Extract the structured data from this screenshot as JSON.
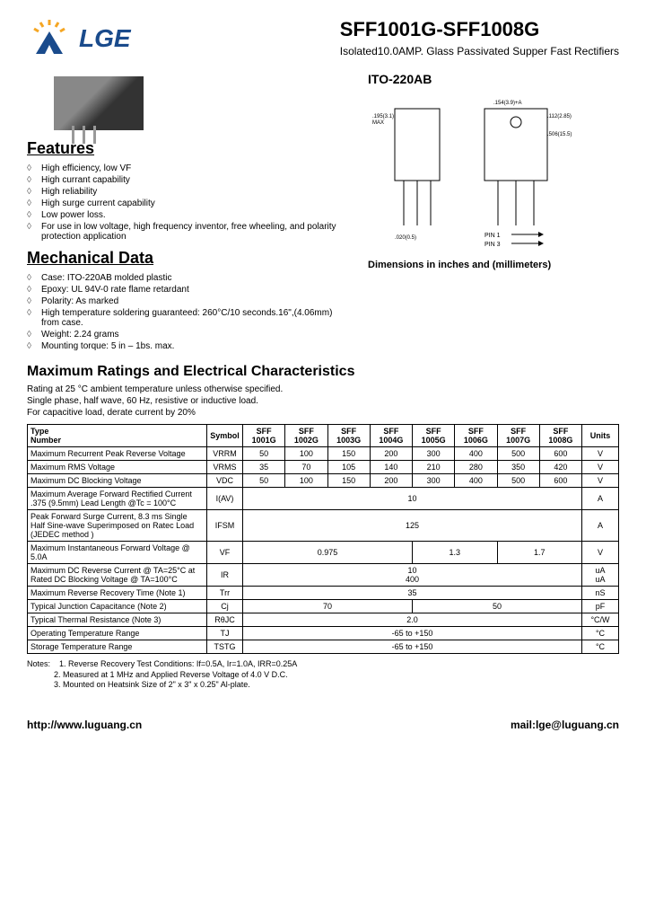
{
  "header": {
    "brand": "LGE",
    "part_number": "SFF1001G-SFF1008G",
    "subtitle": "Isolated10.0AMP. Glass Passivated Supper Fast Rectifiers"
  },
  "package": {
    "label": "ITO-220AB",
    "caption": "Dimensions in inches and (millimeters)"
  },
  "features": {
    "title": "Features",
    "items": [
      "High efficiency, low VF",
      "High currant capability",
      "High reliability",
      "High surge current capability",
      "Low power loss.",
      "For use in low voltage, high frequency inventor, free wheeling, and polarity protection application"
    ]
  },
  "mechanical": {
    "title": "Mechanical Data",
    "items": [
      "Case: ITO-220AB molded plastic",
      "Epoxy: UL 94V-0 rate flame retardant",
      "Polarity: As marked",
      "High temperature soldering guaranteed: 260°C/10 seconds.16\",(4.06mm) from case.",
      "Weight: 2.24 grams",
      "Mounting torque: 5 in – 1bs. max."
    ]
  },
  "ratings": {
    "title": "Maximum Ratings and Electrical Characteristics",
    "sub": "Rating at 25 °C ambient temperature unless otherwise specified.\nSingle phase, half wave, 60 Hz, resistive or inductive load.\nFor capacitive load, derate current by 20%",
    "headers": [
      "Type Number",
      "Symbol",
      "SFF 1001G",
      "SFF 1002G",
      "SFF 1003G",
      "SFF 1004G",
      "SFF 1005G",
      "SFF 1006G",
      "SFF 1007G",
      "SFF 1008G",
      "Units"
    ],
    "rows": [
      {
        "param": "Maximum Recurrent Peak Reverse Voltage",
        "sym": "VRRM",
        "vals": [
          "50",
          "100",
          "150",
          "200",
          "300",
          "400",
          "500",
          "600"
        ],
        "unit": "V"
      },
      {
        "param": "Maximum RMS Voltage",
        "sym": "VRMS",
        "vals": [
          "35",
          "70",
          "105",
          "140",
          "210",
          "280",
          "350",
          "420"
        ],
        "unit": "V"
      },
      {
        "param": "Maximum DC Blocking Voltage",
        "sym": "VDC",
        "vals": [
          "50",
          "100",
          "150",
          "200",
          "300",
          "400",
          "500",
          "600"
        ],
        "unit": "V"
      },
      {
        "param": "Maximum Average Forward Rectified Current .375 (9.5mm) Lead Length @Tc = 100°C",
        "sym": "I(AV)",
        "span": "10",
        "unit": "A"
      },
      {
        "param": "Peak Forward Surge Current, 8.3 ms Single Half Sine-wave Superimposed on Ratec Load (JEDEC method )",
        "sym": "IFSM",
        "span": "125",
        "unit": "A"
      },
      {
        "param": "Maximum Instantaneous Forward Voltage @ 5.0A",
        "sym": "VF",
        "groups": [
          {
            "span": 4,
            "val": "0.975"
          },
          {
            "span": 2,
            "val": "1.3"
          },
          {
            "span": 2,
            "val": "1.7"
          }
        ],
        "unit": "V"
      },
      {
        "param": "Maximum DC Reverse Current @ TA=25°C at Rated DC Blocking Voltage @ TA=100°C",
        "sym": "IR",
        "span": "10\n400",
        "unit": "uA\nuA"
      },
      {
        "param": "Maximum Reverse Recovery Time (Note 1)",
        "sym": "Trr",
        "span": "35",
        "unit": "nS"
      },
      {
        "param": "Typical Junction Capacitance (Note 2)",
        "sym": "Cj",
        "groups": [
          {
            "span": 4,
            "val": "70"
          },
          {
            "span": 4,
            "val": "50"
          }
        ],
        "unit": "pF"
      },
      {
        "param": "Typical Thermal Resistance (Note 3)",
        "sym": "RθJC",
        "span": "2.0",
        "unit": "°C/W"
      },
      {
        "param": "Operating Temperature Range",
        "sym": "TJ",
        "span": "-65 to +150",
        "unit": "°C"
      },
      {
        "param": "Storage Temperature Range",
        "sym": "TSTG",
        "span": "-65 to +150",
        "unit": "°C"
      }
    ]
  },
  "notes": {
    "label": "Notes:",
    "items": [
      "1. Reverse Recovery Test Conditions: If=0.5A, Ir=1.0A, IRR=0.25A",
      "2. Measured at 1 MHz and Applied Reverse Voltage of 4.0 V D.C.",
      "3. Mounted on Heatsink Size of 2\" x 3\" x 0.25\" Al-plate."
    ]
  },
  "footer": {
    "url": "http://www.luguang.cn",
    "email": "mail:lge@luguang.cn"
  },
  "colors": {
    "brand_blue": "#1a4b8c",
    "text": "#000000",
    "bg": "#ffffff"
  }
}
